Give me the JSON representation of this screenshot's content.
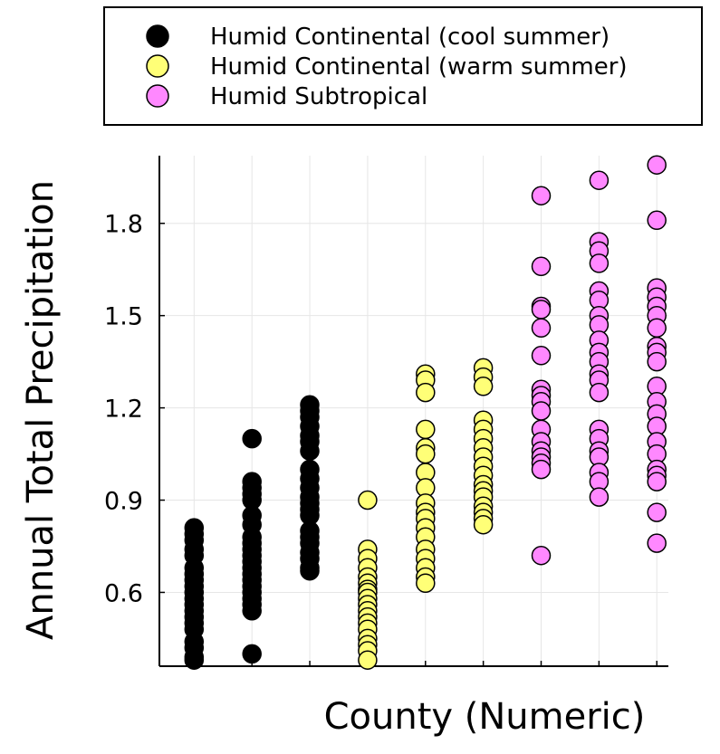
{
  "chart_data": {
    "type": "scatter",
    "xlabel": "County (Numeric)",
    "ylabel": "Annual Total Precipitation",
    "xlim": [
      0.4,
      9.2
    ],
    "ylim": [
      0.36,
      2.02
    ],
    "yticks": [
      0.6,
      0.9,
      1.2,
      1.5,
      1.8
    ],
    "ytick_labels": [
      "0.6",
      "0.9",
      "1.2",
      "1.5",
      "1.8"
    ],
    "xticks": [
      1,
      2,
      3,
      4,
      5,
      6,
      7,
      8,
      9
    ],
    "grid": true,
    "legend_position": "top",
    "series": [
      {
        "name": "Humid Continental (cool summer)",
        "color": "#000000",
        "points": [
          [
            1,
            0.81
          ],
          [
            1,
            0.79
          ],
          [
            1,
            0.77
          ],
          [
            1,
            0.74
          ],
          [
            1,
            0.72
          ],
          [
            1,
            0.68
          ],
          [
            1,
            0.66
          ],
          [
            1,
            0.64
          ],
          [
            1,
            0.62
          ],
          [
            1,
            0.6
          ],
          [
            1,
            0.58
          ],
          [
            1,
            0.56
          ],
          [
            1,
            0.54
          ],
          [
            1,
            0.52
          ],
          [
            1,
            0.5
          ],
          [
            1,
            0.48
          ],
          [
            1,
            0.44
          ],
          [
            1,
            0.42
          ],
          [
            1,
            0.39
          ],
          [
            1,
            0.38
          ],
          [
            2,
            1.1
          ],
          [
            2,
            0.96
          ],
          [
            2,
            0.94
          ],
          [
            2,
            0.92
          ],
          [
            2,
            0.9
          ],
          [
            2,
            0.85
          ],
          [
            2,
            0.82
          ],
          [
            2,
            0.78
          ],
          [
            2,
            0.76
          ],
          [
            2,
            0.74
          ],
          [
            2,
            0.72
          ],
          [
            2,
            0.7
          ],
          [
            2,
            0.68
          ],
          [
            2,
            0.66
          ],
          [
            2,
            0.64
          ],
          [
            2,
            0.62
          ],
          [
            2,
            0.6
          ],
          [
            2,
            0.58
          ],
          [
            2,
            0.56
          ],
          [
            2,
            0.54
          ],
          [
            2,
            0.4
          ],
          [
            3,
            1.21
          ],
          [
            3,
            1.19
          ],
          [
            3,
            1.17
          ],
          [
            3,
            1.14
          ],
          [
            3,
            1.11
          ],
          [
            3,
            1.09
          ],
          [
            3,
            1.06
          ],
          [
            3,
            1.0
          ],
          [
            3,
            0.97
          ],
          [
            3,
            0.94
          ],
          [
            3,
            0.91
          ],
          [
            3,
            0.89
          ],
          [
            3,
            0.87
          ],
          [
            3,
            0.85
          ],
          [
            3,
            0.8
          ],
          [
            3,
            0.78
          ],
          [
            3,
            0.76
          ],
          [
            3,
            0.73
          ],
          [
            3,
            0.71
          ],
          [
            3,
            0.68
          ],
          [
            3,
            0.67
          ]
        ]
      },
      {
        "name": "Humid Continental (warm summer)",
        "color": "#ffff77",
        "points": [
          [
            4,
            0.9
          ],
          [
            4,
            0.74
          ],
          [
            4,
            0.71
          ],
          [
            4,
            0.68
          ],
          [
            4,
            0.65
          ],
          [
            4,
            0.63
          ],
          [
            4,
            0.61
          ],
          [
            4,
            0.6
          ],
          [
            4,
            0.58
          ],
          [
            4,
            0.56
          ],
          [
            4,
            0.54
          ],
          [
            4,
            0.52
          ],
          [
            4,
            0.5
          ],
          [
            4,
            0.48
          ],
          [
            4,
            0.45
          ],
          [
            4,
            0.43
          ],
          [
            4,
            0.41
          ],
          [
            4,
            0.38
          ],
          [
            5,
            1.31
          ],
          [
            5,
            1.29
          ],
          [
            5,
            1.25
          ],
          [
            5,
            1.13
          ],
          [
            5,
            1.07
          ],
          [
            5,
            1.05
          ],
          [
            5,
            0.99
          ],
          [
            5,
            0.94
          ],
          [
            5,
            0.89
          ],
          [
            5,
            0.86
          ],
          [
            5,
            0.84
          ],
          [
            5,
            0.81
          ],
          [
            5,
            0.78
          ],
          [
            5,
            0.74
          ],
          [
            5,
            0.71
          ],
          [
            5,
            0.68
          ],
          [
            5,
            0.65
          ],
          [
            5,
            0.63
          ],
          [
            6,
            1.33
          ],
          [
            6,
            1.3
          ],
          [
            6,
            1.27
          ],
          [
            6,
            1.16
          ],
          [
            6,
            1.13
          ],
          [
            6,
            1.1
          ],
          [
            6,
            1.07
          ],
          [
            6,
            1.04
          ],
          [
            6,
            1.01
          ],
          [
            6,
            0.98
          ],
          [
            6,
            0.95
          ],
          [
            6,
            0.93
          ],
          [
            6,
            0.91
          ],
          [
            6,
            0.88
          ],
          [
            6,
            0.86
          ],
          [
            6,
            0.84
          ],
          [
            6,
            0.82
          ]
        ]
      },
      {
        "name": "Humid Subtropical",
        "color": "#ff88ff",
        "points": [
          [
            7,
            1.89
          ],
          [
            7,
            1.66
          ],
          [
            7,
            1.53
          ],
          [
            7,
            1.52
          ],
          [
            7,
            1.46
          ],
          [
            7,
            1.37
          ],
          [
            7,
            1.26
          ],
          [
            7,
            1.24
          ],
          [
            7,
            1.22
          ],
          [
            7,
            1.19
          ],
          [
            7,
            1.13
          ],
          [
            7,
            1.09
          ],
          [
            7,
            1.06
          ],
          [
            7,
            1.04
          ],
          [
            7,
            1.02
          ],
          [
            7,
            1.0
          ],
          [
            7,
            0.72
          ],
          [
            8,
            1.94
          ],
          [
            8,
            1.74
          ],
          [
            8,
            1.71
          ],
          [
            8,
            1.67
          ],
          [
            8,
            1.58
          ],
          [
            8,
            1.55
          ],
          [
            8,
            1.5
          ],
          [
            8,
            1.47
          ],
          [
            8,
            1.42
          ],
          [
            8,
            1.38
          ],
          [
            8,
            1.35
          ],
          [
            8,
            1.31
          ],
          [
            8,
            1.29
          ],
          [
            8,
            1.25
          ],
          [
            8,
            1.13
          ],
          [
            8,
            1.1
          ],
          [
            8,
            1.06
          ],
          [
            8,
            1.04
          ],
          [
            8,
            0.99
          ],
          [
            8,
            0.96
          ],
          [
            8,
            0.91
          ],
          [
            9,
            1.99
          ],
          [
            9,
            1.81
          ],
          [
            9,
            1.59
          ],
          [
            9,
            1.56
          ],
          [
            9,
            1.53
          ],
          [
            9,
            1.5
          ],
          [
            9,
            1.46
          ],
          [
            9,
            1.4
          ],
          [
            9,
            1.38
          ],
          [
            9,
            1.35
          ],
          [
            9,
            1.27
          ],
          [
            9,
            1.22
          ],
          [
            9,
            1.18
          ],
          [
            9,
            1.14
          ],
          [
            9,
            1.09
          ],
          [
            9,
            1.05
          ],
          [
            9,
            1.0
          ],
          [
            9,
            0.98
          ],
          [
            9,
            0.96
          ],
          [
            9,
            0.86
          ],
          [
            9,
            0.76
          ]
        ]
      }
    ]
  }
}
